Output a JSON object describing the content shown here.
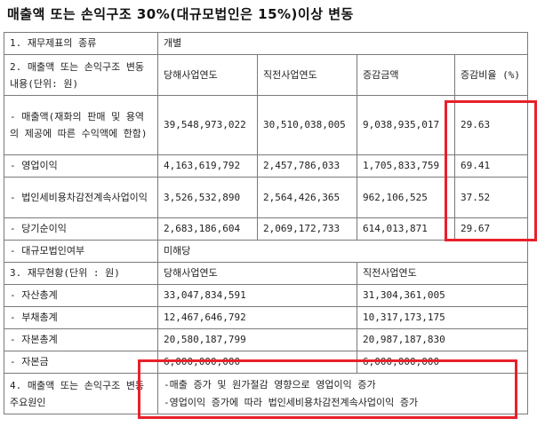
{
  "title": "매출액 또는 손익구조 30%(대규모법인은 15%)이상 변동",
  "rows": {
    "r1": {
      "label": "1. 재무제표의 종류",
      "value": "개별"
    },
    "r2": {
      "label": "2. 매출액 또는 손익구조 변동내용(단위: 원)",
      "h1": "당해사업연도",
      "h2": "직전사업연도",
      "h3": "증감금액",
      "h4": "증감비율 (%)"
    },
    "r3": {
      "label": "- 매출액(재화의 판매 및 용역의 제공에 따른 수익액에 한함)",
      "c1": "39,548,973,022",
      "c2": "30,510,038,005",
      "c3": "9,038,935,017",
      "c4": "29.63"
    },
    "r4": {
      "label": "- 영업이익",
      "c1": "4,163,619,792",
      "c2": "2,457,786,033",
      "c3": "1,705,833,759",
      "c4": "69.41"
    },
    "r5": {
      "label": "- 법인세비용차감전계속사업이익",
      "c1": "3,526,532,890",
      "c2": "2,564,426,365",
      "c3": "962,106,525",
      "c4": "37.52"
    },
    "r6": {
      "label": "- 당기순이익",
      "c1": "2,683,186,604",
      "c2": "2,069,172,733",
      "c3": "614,013,871",
      "c4": "29.67"
    },
    "r7": {
      "label": "- 대규모법인여부",
      "value": "미해당"
    },
    "r8": {
      "label": "3. 재무현황(단위 : 원)",
      "h1": "당해사업연도",
      "h2": "직전사업연도"
    },
    "r9": {
      "label": "- 자산총계",
      "c1": "33,047,834,591",
      "c2": "31,304,361,005"
    },
    "r10": {
      "label": "- 부채총계",
      "c1": "12,467,646,792",
      "c2": "10,317,173,175"
    },
    "r11": {
      "label": "- 자본총계",
      "c1": "20,580,187,799",
      "c2": "20,987,187,830"
    },
    "r12": {
      "label": "- 자본금",
      "c1": "6,000,000,000",
      "c2": "6,000,000,000"
    },
    "r13": {
      "label": "4. 매출액 또는 손익구조 변동 주요원인",
      "line1": "-매출 증가 및 원가절감 영향으로 영업이익 증가",
      "line2": "-영업이익 증가에 따라 법인세비용차감전계속사업이익 증가"
    }
  },
  "highlight_color": "#e8202a"
}
